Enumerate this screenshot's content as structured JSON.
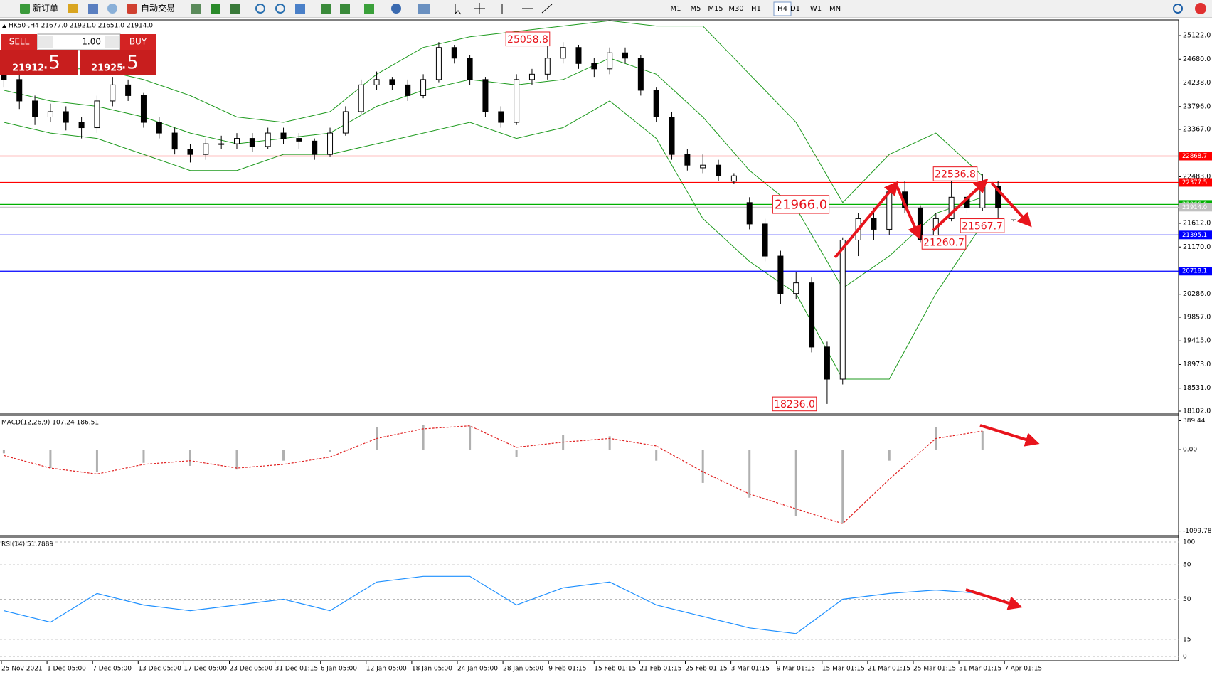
{
  "toolbar": {
    "new_order": "新订单",
    "auto_trading": "自动交易",
    "timeframes": [
      "M1",
      "M5",
      "M15",
      "M30",
      "H1",
      "H4",
      "D1",
      "W1",
      "MN"
    ]
  },
  "trade_panel": {
    "sell": "SELL",
    "buy": "BUY",
    "volume": "1.00",
    "bid_main": "21912",
    "bid_fraction": ".5",
    "ask_main": "21925",
    "ask_fraction": ".5"
  },
  "symbol_info": "HK50-,H4  21677.0 21921.0 21651.0 21914.0",
  "main_chart": {
    "type": "candlestick",
    "open": [
      24400,
      24300,
      23900,
      23600,
      23700,
      23500,
      23400,
      23900,
      24200,
      24000,
      23500,
      23300,
      23000,
      22900,
      23100,
      23100,
      23200,
      23050,
      23300,
      23200,
      23150,
      22900,
      23300,
      23700,
      24200,
      24300,
      24200,
      24000,
      24300,
      24900,
      24700,
      24300,
      23700,
      23500,
      24300,
      24400,
      24700,
      24900,
      24600,
      24500,
      24800,
      24700,
      24100,
      23600,
      22900,
      22650,
      22700,
      22400,
      22000,
      21600,
      21000,
      20300,
      20500,
      19300,
      18700,
      21300,
      21700,
      21500,
      22200,
      21900,
      21300,
      21700,
      22100,
      21900,
      22300,
      21677
    ],
    "high": [
      24550,
      24400,
      24000,
      23850,
      23800,
      23600,
      24000,
      24350,
      24300,
      24050,
      23600,
      23400,
      23100,
      23200,
      23250,
      23300,
      23300,
      23400,
      23400,
      23300,
      23200,
      23400,
      23800,
      24300,
      24450,
      24350,
      24300,
      24400,
      25000,
      24950,
      24750,
      24350,
      23800,
      24400,
      24500,
      25058.8,
      25000,
      24950,
      24700,
      24900,
      24900,
      24750,
      24150,
      23700,
      23000,
      22900,
      22800,
      22550,
      22100,
      21700,
      21100,
      20700,
      20600,
      19400,
      21350,
      21800,
      21900,
      22300,
      22400,
      21950,
      21800,
      22400,
      22200,
      22536.8,
      22400,
      21921
    ],
    "low": [
      24150,
      23750,
      23450,
      23500,
      23350,
      23200,
      23300,
      23800,
      23900,
      23400,
      23200,
      22900,
      22750,
      22800,
      23000,
      23000,
      22950,
      23000,
      23100,
      23000,
      22800,
      22850,
      23250,
      23650,
      24100,
      24100,
      23900,
      23950,
      24250,
      24600,
      24200,
      23600,
      23400,
      23450,
      24200,
      24300,
      24600,
      24500,
      24350,
      24400,
      24600,
      24000,
      23500,
      22800,
      22600,
      22550,
      22400,
      22350,
      21500,
      20900,
      20100,
      20200,
      19200,
      18236,
      18600,
      21000,
      21300,
      21400,
      21800,
      21260.7,
      21250,
      21650,
      21800,
      21850,
      21567.7,
      21651
    ],
    "close": [
      24300,
      23900,
      23600,
      23700,
      23500,
      23400,
      23900,
      24200,
      24000,
      23500,
      23300,
      23000,
      22900,
      23100,
      23100,
      23200,
      23050,
      23300,
      23200,
      23150,
      22900,
      23300,
      23700,
      24200,
      24300,
      24200,
      24000,
      24300,
      24900,
      24700,
      24300,
      23700,
      23500,
      24300,
      24400,
      24700,
      24900,
      24600,
      24500,
      24800,
      24700,
      24100,
      23600,
      22900,
      22700,
      22700,
      22500,
      22500,
      21600,
      21000,
      20300,
      20500,
      19300,
      18700,
      21300,
      21700,
      21500,
      22200,
      21900,
      21300,
      21700,
      22100,
      21900,
      22300,
      21900,
      21914
    ],
    "bands": {
      "x": [
        0,
        3,
        6,
        9,
        12,
        15,
        18,
        21,
        24,
        27,
        30,
        33,
        36,
        39,
        42,
        45,
        48,
        51,
        54,
        57,
        60,
        63
      ],
      "upper": [
        24700,
        24500,
        24500,
        24300,
        24000,
        23600,
        23500,
        23700,
        24400,
        24900,
        25100,
        25200,
        25300,
        25400,
        25300,
        25300,
        24400,
        23500,
        22000,
        22900,
        23300,
        22500
      ],
      "middle": [
        24100,
        23900,
        23800,
        23600,
        23300,
        23100,
        23200,
        23300,
        23800,
        24100,
        24300,
        24200,
        24300,
        24700,
        24400,
        23600,
        22600,
        21900,
        20400,
        21000,
        21800,
        22100
      ],
      "lower": [
        23500,
        23300,
        23200,
        22900,
        22600,
        22600,
        22900,
        22900,
        23100,
        23300,
        23500,
        23200,
        23400,
        23900,
        23200,
        21700,
        20900,
        20300,
        18700,
        18700,
        20300,
        21600
      ]
    },
    "ylim": [
      18062,
      25415
    ],
    "yticks": [
      {
        "value": 25122,
        "label": "25122.0"
      },
      {
        "value": 24680,
        "label": "24680.0"
      },
      {
        "value": 24238,
        "label": "24238.0"
      },
      {
        "value": 23796,
        "label": "23796.0"
      },
      {
        "value": 23367,
        "label": "23367.0"
      },
      {
        "value": 22483,
        "label": "22483.0"
      },
      {
        "value": 21612,
        "label": "21612.0"
      },
      {
        "value": 21170,
        "label": "21170.0"
      },
      {
        "value": 20286,
        "label": "20286.0"
      },
      {
        "value": 19857,
        "label": "19857.0"
      },
      {
        "value": 19415,
        "label": "19415.0"
      },
      {
        "value": 18973,
        "label": "18973.0"
      },
      {
        "value": 18531,
        "label": "18531.0"
      },
      {
        "value": 18102,
        "label": "18102.0"
      }
    ],
    "levels": [
      {
        "value": 22868.7,
        "label": "22868.7",
        "color": "#ff0000"
      },
      {
        "value": 22377.5,
        "label": "22377.5",
        "color": "#ff0000"
      },
      {
        "value": 21966.0,
        "label": "21966.0",
        "color": "#00b000"
      },
      {
        "value": 21914.0,
        "label": "21914.0",
        "color": "#c0c0c0"
      },
      {
        "value": 21395.1,
        "label": "21395.1",
        "color": "#0000ff"
      },
      {
        "value": 20718.1,
        "label": "20718.1",
        "color": "#0000ff"
      }
    ],
    "annotations": [
      {
        "value": 25058.8,
        "label": "25058.8"
      },
      {
        "value": 21966.0,
        "label": "21966.0"
      },
      {
        "value": 22536.8,
        "label": "22536.8"
      },
      {
        "value": 21260.7,
        "label": "21260.7"
      },
      {
        "value": 21567.7,
        "label": "21567.7"
      },
      {
        "value": 18236.0,
        "label": "18236.0"
      }
    ],
    "dates": [
      "25 Nov 2021",
      "1 Dec 05:00",
      "7 Dec 05:00",
      "13 Dec 05:00",
      "17 Dec 05:00",
      "23 Dec 05:00",
      "31 Dec 01:15",
      "6 Jan 05:00",
      "12 Jan 05:00",
      "18 Jan 05:00",
      "24 Jan 05:00",
      "28 Jan 05:00",
      "9 Feb 01:15",
      "15 Feb 01:15",
      "21 Feb 01:15",
      "25 Feb 01:15",
      "3 Mar 01:15",
      "9 Mar 01:15",
      "15 Mar 01:15",
      "21 Mar 01:15",
      "25 Mar 01:15",
      "31 Mar 01:15",
      "7 Apr 01:15"
    ]
  },
  "macd": {
    "label": "MACD(12,26,9) 107.24 186.51",
    "x": [
      0,
      3,
      6,
      9,
      12,
      15,
      18,
      21,
      24,
      27,
      30,
      33,
      36,
      39,
      42,
      45,
      48,
      51,
      54,
      57,
      60,
      63
    ],
    "histogram": [
      -50,
      -250,
      -300,
      -180,
      -220,
      -270,
      -150,
      -30,
      300,
      330,
      320,
      -100,
      200,
      180,
      -150,
      -450,
      -650,
      -900,
      -1000,
      -150,
      300,
      250
    ],
    "signal": [
      -80,
      -250,
      -330,
      -200,
      -150,
      -250,
      -200,
      -100,
      150,
      280,
      320,
      30,
      100,
      150,
      50,
      -300,
      -600,
      -800,
      -1000,
      -400,
      150,
      250
    ],
    "ylim": [
      -1152,
      452
    ],
    "yticks": [
      {
        "value": 389.44,
        "label": "389.44"
      },
      {
        "value": 0,
        "label": "0.00"
      },
      {
        "value": -1099.78,
        "label": "-1099.78"
      }
    ]
  },
  "rsi": {
    "label": "RSI(14) 51.7889",
    "x": [
      0,
      3,
      6,
      9,
      12,
      15,
      18,
      21,
      24,
      27,
      30,
      33,
      36,
      39,
      42,
      45,
      48,
      51,
      54,
      57,
      60,
      63
    ],
    "values": [
      40,
      30,
      55,
      45,
      40,
      45,
      50,
      40,
      65,
      70,
      70,
      45,
      60,
      65,
      45,
      35,
      25,
      20,
      50,
      55,
      58,
      55
    ],
    "ylim": [
      -3.7,
      103.7
    ],
    "yticks": [
      100,
      80,
      50,
      15,
      0
    ]
  }
}
